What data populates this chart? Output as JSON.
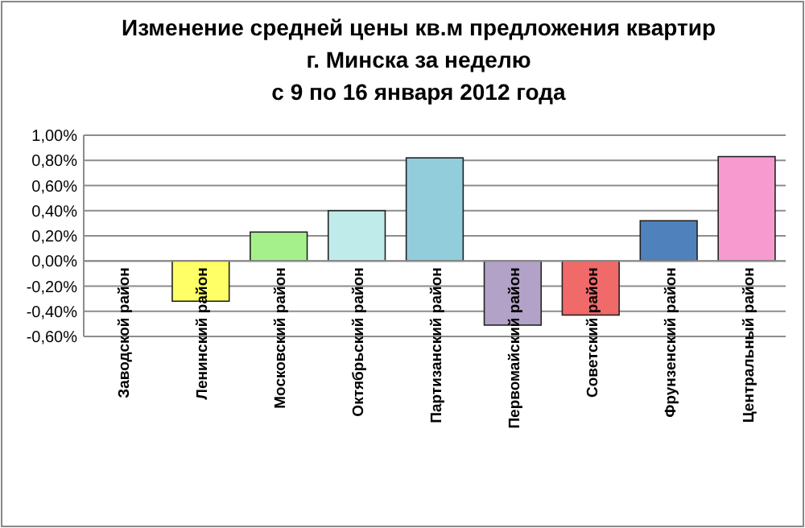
{
  "chart_data": {
    "type": "bar",
    "title": "Изменение средней цены кв.м предложения квартир\nг. Минска за неделю\nс 9 по 16 января 2012 года",
    "categories": [
      "Заводской район",
      "Ленинский район",
      "Московский район",
      "Октябрьский район",
      "Партизанский район",
      "Первомайский район",
      "Советский район",
      "Фрунзенский район",
      "Центральный район"
    ],
    "values": [
      0,
      -0.32,
      0.23,
      0.4,
      0.82,
      -0.51,
      -0.43,
      0.32,
      0.83
    ],
    "colors": [
      "#9bbb59",
      "#ffff66",
      "#a6f08c",
      "#c0ebeb",
      "#92cddc",
      "#b3a2c7",
      "#f06a6a",
      "#4f81bd",
      "#f79ad0"
    ],
    "ylim": [
      -0.6,
      1.0
    ],
    "yticks": [
      {
        "value": -0.6,
        "label": "-0,60%"
      },
      {
        "value": -0.4,
        "label": "-0,40%"
      },
      {
        "value": -0.2,
        "label": "-0,20%"
      },
      {
        "value": 0,
        "label": "0,00%"
      },
      {
        "value": 0.2,
        "label": "0,20%"
      },
      {
        "value": 0.4,
        "label": "0,40%"
      },
      {
        "value": 0.6,
        "label": "0,60%"
      },
      {
        "value": 0.8,
        "label": "0,80%"
      },
      {
        "value": 1.0,
        "label": "1,00%"
      }
    ],
    "grid": "y"
  }
}
